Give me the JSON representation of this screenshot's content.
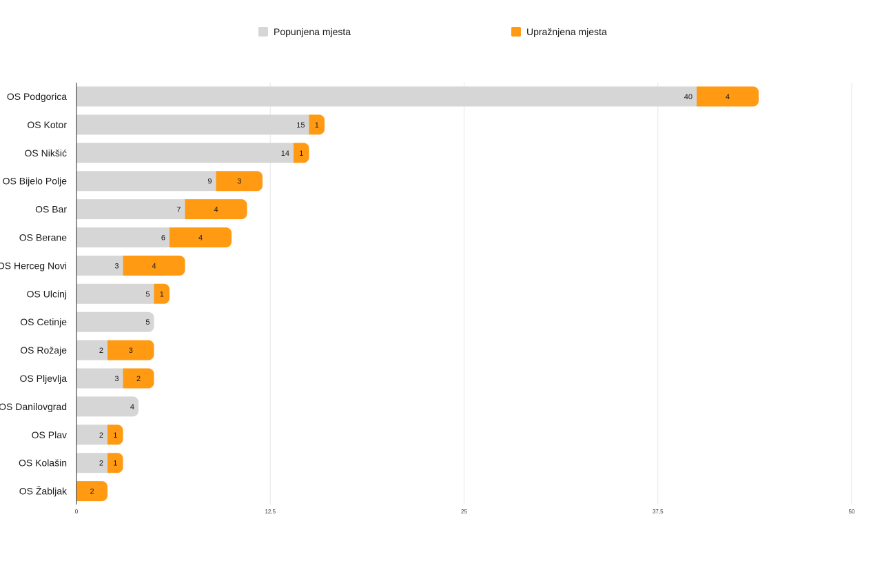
{
  "chart_data": {
    "type": "bar",
    "orientation": "horizontal",
    "stacked": true,
    "categories": [
      "OS Podgorica",
      "OS Kotor",
      "OS Nikšić",
      "OS Bijelo Polje",
      "OS Bar",
      "OS Berane",
      "OS Herceg Novi",
      "OS Ulcinj",
      "OS Cetinje",
      "OS Rožaje",
      "OS Pljevlja",
      "OS Danilovgrad",
      "OS Plav",
      "OS Kolašin",
      "OS Žabljak"
    ],
    "series": [
      {
        "name": "Popunjena mjesta",
        "color": "#d6d6d6",
        "values": [
          40,
          15,
          14,
          9,
          7,
          6,
          3,
          5,
          5,
          2,
          3,
          4,
          2,
          2,
          0
        ]
      },
      {
        "name": "Upražnjena mjesta",
        "color": "#ff9a12",
        "values": [
          4,
          1,
          1,
          3,
          4,
          4,
          4,
          1,
          0,
          3,
          2,
          0,
          1,
          1,
          2
        ]
      }
    ],
    "xlim": [
      0,
      50
    ],
    "ticks": [
      "0",
      "12,5",
      "25",
      "37,5",
      "50"
    ],
    "tick_values": [
      0,
      12.5,
      25,
      37.5,
      50
    ],
    "grid": true,
    "legend_position": "top"
  }
}
